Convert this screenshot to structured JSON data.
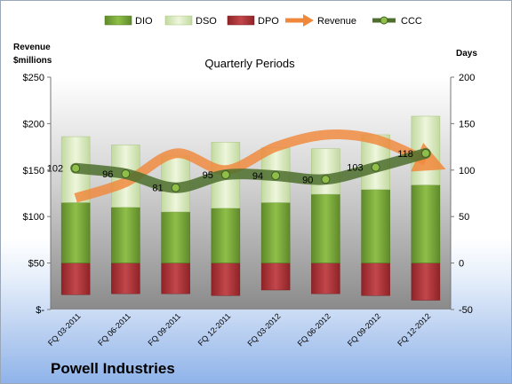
{
  "company_name": "Powell Industries",
  "chart_data": {
    "type": "bar",
    "title": "Quarterly Periods",
    "left_axis": {
      "label_line1": "Revenue",
      "label_line2": "$millions",
      "ylim": [
        0,
        250
      ],
      "ticks": [
        0,
        50,
        100,
        150,
        200,
        250
      ],
      "tick_labels": [
        "$-",
        "$50",
        "$100",
        "$150",
        "$200",
        "$250"
      ]
    },
    "right_axis": {
      "label": "Days",
      "ylim": [
        -50,
        200
      ],
      "ticks": [
        -50,
        0,
        50,
        100,
        150,
        200
      ],
      "tick_labels": [
        "-50",
        "0",
        "50",
        "100",
        "150",
        "200"
      ]
    },
    "categories": [
      "FQ 03-2011",
      "FQ 06-2011",
      "FQ 09-2011",
      "FQ 12-2011",
      "FQ 03-2012",
      "FQ 06-2012",
      "FQ 09-2012",
      "FQ 12-2012"
    ],
    "series": [
      {
        "name": "DIO",
        "axis": "right",
        "kind": "stacked_bar",
        "color": "#7aa63a",
        "values": [
          65,
          60,
          55,
          59,
          65,
          74,
          79,
          84
        ]
      },
      {
        "name": "DSO",
        "axis": "right",
        "kind": "stacked_bar",
        "color": "#d6e7b8",
        "values": [
          71,
          67,
          60,
          71,
          59,
          49,
          59,
          74
        ]
      },
      {
        "name": "DPO",
        "axis": "right",
        "kind": "negative_bar",
        "color": "#b5373b",
        "values": [
          34,
          33,
          33,
          35,
          29,
          33,
          35,
          40
        ]
      },
      {
        "name": "Revenue",
        "axis": "left",
        "kind": "line",
        "color": "#f0883c",
        "values": [
          120,
          137,
          168,
          150,
          175,
          188,
          183,
          160
        ]
      },
      {
        "name": "CCC",
        "axis": "right",
        "kind": "line",
        "color": "#4e6e2e",
        "values": [
          102,
          96,
          81,
          95,
          94,
          90,
          103,
          118
        ]
      }
    ],
    "data_labels": [
      "102",
      "96",
      "81",
      "95",
      "94",
      "90",
      "103",
      "118"
    ],
    "legend": [
      "DIO",
      "DSO",
      "DPO",
      "Revenue",
      "CCC"
    ],
    "legend_position": "top",
    "grid": false
  }
}
